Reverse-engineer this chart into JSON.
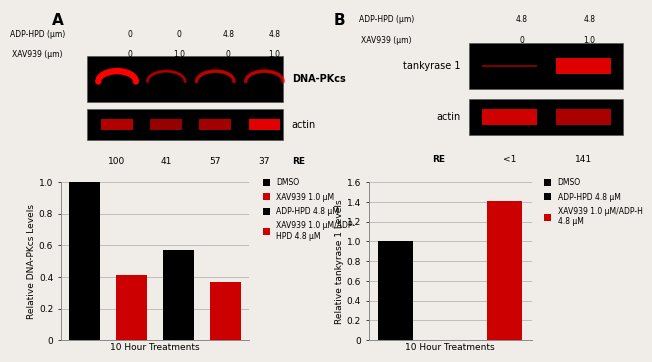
{
  "panel_A": {
    "label": "A",
    "blot_header_row1": [
      "ADP-HPD (μm)",
      "0",
      "0",
      "4.8",
      "4.8"
    ],
    "blot_header_row2": [
      "XAV939 (μm)",
      "0",
      "1.0",
      "0",
      "1.0"
    ],
    "blot_label1": "DNA-PKcs",
    "blot_label2": "actin",
    "re_values": [
      "100",
      "41",
      "57",
      "37"
    ],
    "re_label": "RE",
    "bar_values": [
      1.0,
      0.41,
      0.57,
      0.37
    ],
    "bar_colors": [
      "#000000",
      "#cc0000",
      "#000000",
      "#cc0000"
    ],
    "bar_labels": [
      "DMSO",
      "XAV939 1.0 μM",
      "ADP-HPD 4.8 μM",
      "XAV939 1.0 μM/ADP-\nHPD 4.8 μM"
    ],
    "ylabel": "Relative DNA-PKcs Levels",
    "xlabel": "10 Hour Treatments",
    "ylim": [
      0,
      1.0
    ],
    "yticks": [
      0,
      0.2,
      0.4,
      0.6,
      0.8,
      1.0
    ]
  },
  "panel_B": {
    "label": "B",
    "blot_header_row1": [
      "ADP-HPD (μm)",
      "4.8",
      "4.8"
    ],
    "blot_header_row2": [
      "XAV939 (μm)",
      "0",
      "1.0"
    ],
    "blot_label1": "tankyrase 1",
    "blot_label2": "actin",
    "re_values": [
      "<1",
      "141"
    ],
    "re_label": "RE",
    "bar_values": [
      1.0,
      0.0,
      1.41
    ],
    "bar_colors": [
      "#000000",
      "#000000",
      "#cc0000"
    ],
    "bar_labels": [
      "DMSO",
      "ADP-HPD 4.8 μM",
      "XAV939 1.0 μM/ADP-H\n4.8 μM"
    ],
    "ylabel": "Relative tankyrase 1 Levels",
    "xlabel": "10 Hour Treatments",
    "ylim": [
      0,
      1.6
    ],
    "yticks": [
      0,
      0.2,
      0.4,
      0.6,
      0.8,
      1.0,
      1.2,
      1.4,
      1.6
    ]
  },
  "fig_bg": "#f0ede8"
}
